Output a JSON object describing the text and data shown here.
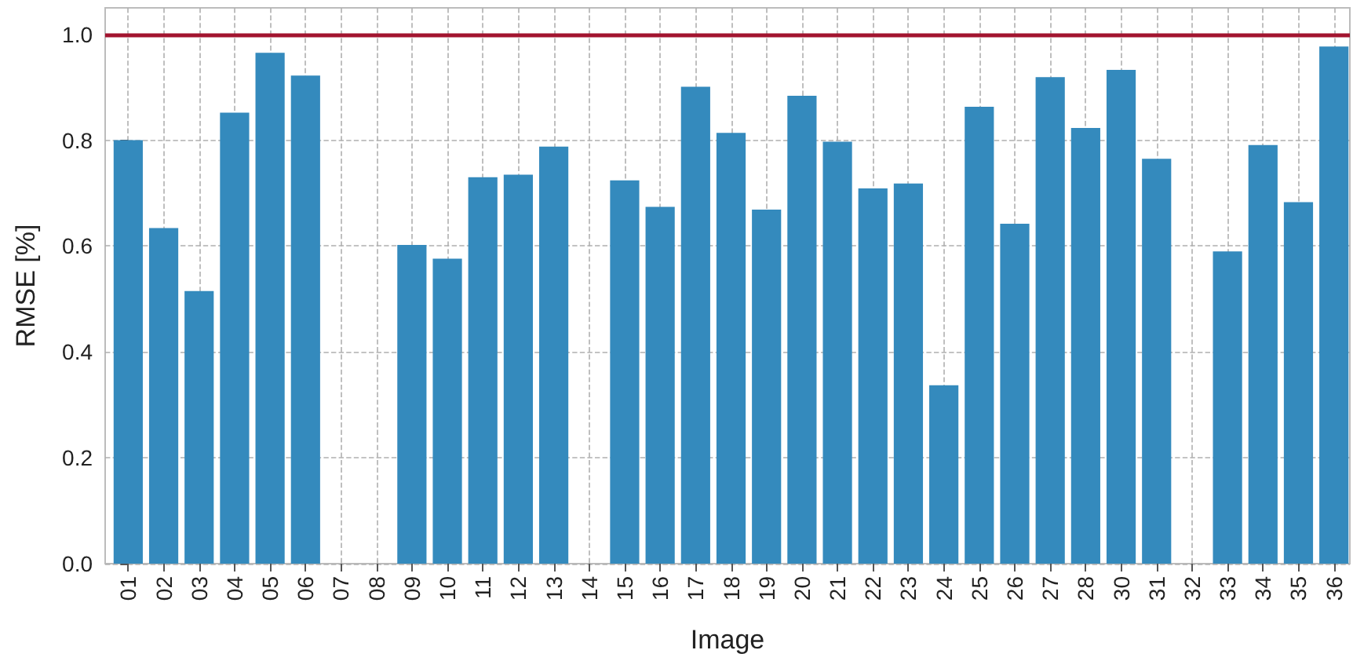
{
  "chart_data": {
    "type": "bar",
    "xlabel": "Image",
    "ylabel": "RMSE [%]",
    "categories": [
      "01",
      "02",
      "03",
      "04",
      "05",
      "06",
      "07",
      "08",
      "09",
      "10",
      "11",
      "12",
      "13",
      "14",
      "15",
      "16",
      "17",
      "18",
      "19",
      "20",
      "21",
      "22",
      "23",
      "24",
      "25",
      "26",
      "27",
      "28",
      "30",
      "31",
      "32",
      "33",
      "34",
      "35",
      "36"
    ],
    "values": [
      0.8,
      0.634,
      0.515,
      0.852,
      0.965,
      0.922,
      null,
      null,
      0.602,
      0.576,
      0.73,
      0.735,
      0.788,
      null,
      0.724,
      0.674,
      0.901,
      0.814,
      0.669,
      0.884,
      0.797,
      0.709,
      0.718,
      0.337,
      0.863,
      0.642,
      0.919,
      0.823,
      0.933,
      0.765,
      null,
      0.59,
      0.791,
      0.683,
      0.977
    ],
    "color": "#348abd",
    "ylim": [
      0,
      1.05
    ],
    "yticks": [
      {
        "value": 0,
        "label": "0.0"
      },
      {
        "value": 0.2,
        "label": "0.2"
      },
      {
        "value": 0.4,
        "label": "0.4"
      },
      {
        "value": 0.6,
        "label": "0.6"
      },
      {
        "value": 0.8,
        "label": "0.8"
      },
      {
        "value": 1,
        "label": "1.0"
      }
    ],
    "ref_lines": [
      {
        "axis": "y",
        "value": 1,
        "color": "#a2142f",
        "line_style": "solid"
      }
    ],
    "grid": true
  }
}
